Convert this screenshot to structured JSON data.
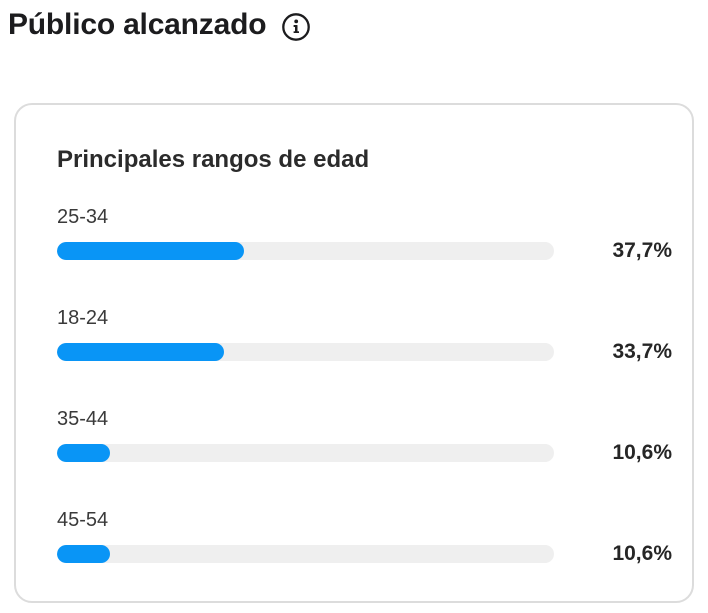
{
  "header": {
    "title": "Público alcanzado"
  },
  "card": {
    "title": "Principales rangos de edad"
  },
  "chart_data": {
    "type": "bar",
    "orientation": "horizontal",
    "title": "Principales rangos de edad",
    "categories": [
      "25-34",
      "18-24",
      "35-44",
      "45-54"
    ],
    "values": [
      37.7,
      33.7,
      10.6,
      10.6
    ],
    "value_labels": [
      "37,7%",
      "33,7%",
      "10,6%",
      "10,6%"
    ],
    "xlim": [
      0,
      100
    ],
    "grid": false,
    "legend": false,
    "bar_color": "#0995f6",
    "track_color": "#efefef"
  },
  "colors": {
    "accent": "#0995f6",
    "track": "#efefef",
    "card_border": "#dcdcdc",
    "text_primary": "#262626"
  }
}
